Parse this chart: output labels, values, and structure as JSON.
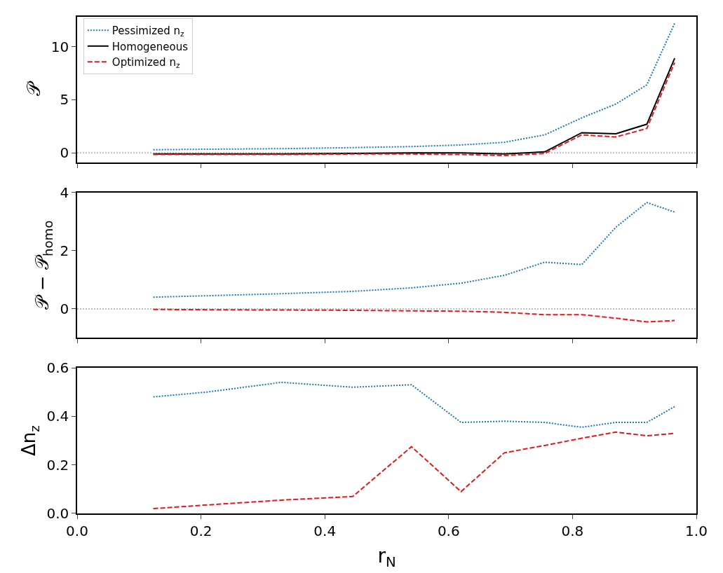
{
  "chart_data": [
    {
      "type": "line",
      "ylabel": "𝒫",
      "x": [
        0.123,
        0.21,
        0.33,
        0.445,
        0.54,
        0.62,
        0.69,
        0.755,
        0.815,
        0.87,
        0.92,
        0.965
      ],
      "xlim": [
        0,
        1
      ],
      "xticks": [
        0,
        0.2,
        0.4,
        0.6,
        0.8,
        1
      ],
      "ylim": [
        -0.9,
        12.8
      ],
      "yticks": [
        0,
        5,
        10
      ],
      "tick_labels": "y",
      "legend": "top left",
      "grid": false,
      "series": [
        {
          "name": "Pessimized n$_{z}$",
          "color": "#1f77b4",
          "line_style": "dotted",
          "values": [
            0.3,
            0.35,
            0.4,
            0.5,
            0.6,
            0.75,
            1.0,
            1.7,
            3.3,
            4.6,
            6.4,
            12.2
          ]
        },
        {
          "name": "Homogeneous",
          "color": "#000000",
          "line_style": "solid",
          "values": [
            -0.1,
            -0.1,
            -0.1,
            -0.05,
            0,
            0,
            -0.1,
            0.1,
            1.9,
            1.8,
            2.7,
            8.9
          ]
        },
        {
          "name": "Optimized n$_{z}$",
          "color": "#e31a1c",
          "line_style": "dashed",
          "values": [
            -0.15,
            -0.15,
            -0.15,
            -0.1,
            -0.1,
            -0.15,
            -0.25,
            -0.05,
            1.7,
            1.5,
            2.3,
            8.5
          ]
        }
      ],
      "ref_lines": [
        {
          "axis": "y",
          "value": 0,
          "color": "#bfbfbf",
          "line_style": "dotted"
        }
      ]
    },
    {
      "type": "line",
      "ylabel": "𝒫 − 𝒫$_{homo}$",
      "x": [
        0.123,
        0.21,
        0.33,
        0.445,
        0.54,
        0.62,
        0.69,
        0.755,
        0.815,
        0.87,
        0.92,
        0.965
      ],
      "xlim": [
        0,
        1
      ],
      "xticks": [
        0,
        0.2,
        0.4,
        0.6,
        0.8,
        1
      ],
      "ylim": [
        -1,
        4
      ],
      "yticks": [
        0,
        2,
        4
      ],
      "tick_labels": "y",
      "grid": false,
      "series": [
        {
          "color": "#1f77b4",
          "line_style": "dotted",
          "values": [
            0.4,
            0.45,
            0.52,
            0.6,
            0.72,
            0.88,
            1.15,
            1.6,
            1.52,
            2.8,
            3.65,
            3.32
          ]
        },
        {
          "color": "#e31a1c",
          "line_style": "dashed",
          "values": [
            -0.02,
            -0.03,
            -0.04,
            -0.05,
            -0.07,
            -0.08,
            -0.12,
            -0.2,
            -0.2,
            -0.32,
            -0.45,
            -0.4
          ]
        }
      ],
      "ref_lines": [
        {
          "axis": "y",
          "value": 0,
          "color": "#bfbfbf",
          "line_style": "dotted"
        }
      ]
    },
    {
      "type": "line",
      "xlabel": "r$_{N}$",
      "ylabel": "Δn$_{z}$",
      "x": [
        0.123,
        0.21,
        0.33,
        0.445,
        0.54,
        0.62,
        0.69,
        0.755,
        0.815,
        0.87,
        0.92,
        0.965
      ],
      "xlim": [
        0,
        1
      ],
      "xticks": [
        {
          "value": 0,
          "label": "0.0"
        },
        {
          "value": 0.2,
          "label": "0.2"
        },
        {
          "value": 0.4,
          "label": "0.4"
        },
        {
          "value": 0.6,
          "label": "0.6"
        },
        {
          "value": 0.8,
          "label": "0.8"
        },
        {
          "value": 1,
          "label": "1.0"
        }
      ],
      "ylim": [
        0,
        0.6
      ],
      "yticks": [
        {
          "value": 0,
          "label": "0.0"
        },
        {
          "value": 0.2,
          "label": "0.2"
        },
        {
          "value": 0.4,
          "label": "0.4"
        },
        {
          "value": 0.6,
          "label": "0.6"
        }
      ],
      "grid": false,
      "series": [
        {
          "color": "#1f77b4",
          "line_style": "dotted",
          "values": [
            0.48,
            0.5,
            0.54,
            0.52,
            0.53,
            0.375,
            0.38,
            0.375,
            0.355,
            0.375,
            0.375,
            0.44
          ]
        },
        {
          "color": "#e31a1c",
          "line_style": "dashed",
          "values": [
            0.02,
            0.035,
            0.055,
            0.07,
            0.275,
            0.09,
            0.25,
            0.28,
            0.31,
            0.335,
            0.32,
            0.33
          ]
        }
      ]
    }
  ]
}
